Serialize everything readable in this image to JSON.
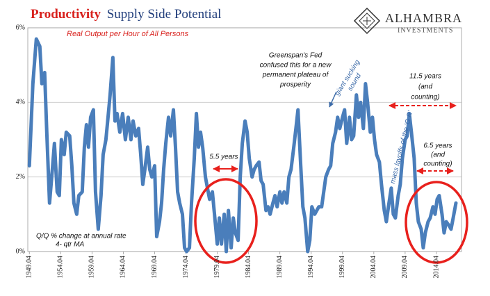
{
  "chart_data": {
    "type": "line",
    "title": [
      "Productivity",
      "Supply Side Potential"
    ],
    "subtitle": "Real Output per Hour of All Persons",
    "note": [
      "Q/Q % change at annual rate",
      "4- qtr MA"
    ],
    "logo": [
      "ALHAMBRA",
      "INVESTMENTS"
    ],
    "annotations": [
      [
        "Greenspan's Fed",
        "confused this for a new",
        "permanent plateau of",
        "prosperity"
      ],
      [
        "giant sucking",
        "sound"
      ],
      [
        "mass layoffs of the 'G R'"
      ],
      [
        "11.5 years",
        "(and",
        "counting)"
      ],
      [
        "5.5 years"
      ],
      [
        "6.5 years",
        "(and",
        "counting)"
      ]
    ],
    "color": "#4a7ebb",
    "grid": true,
    "xlim": [
      1949.5,
      2018.75
    ],
    "ylim": [
      0,
      6
    ],
    "xticks": [
      {
        "value": 1949.75,
        "label": "1949.04"
      },
      {
        "value": 1954.75,
        "label": "1954.04"
      },
      {
        "value": 1959.75,
        "label": "1959.04"
      },
      {
        "value": 1964.75,
        "label": "1964.04"
      },
      {
        "value": 1969.75,
        "label": "1969.04"
      },
      {
        "value": 1974.75,
        "label": "1974.04"
      },
      {
        "value": 1979.75,
        "label": "1979.04"
      },
      {
        "value": 1984.75,
        "label": "1984.04"
      },
      {
        "value": 1989.75,
        "label": "1989.04"
      },
      {
        "value": 1994.75,
        "label": "1994.04"
      },
      {
        "value": 1999.75,
        "label": "1999.04"
      },
      {
        "value": 2004.75,
        "label": "2004.04"
      },
      {
        "value": 2009.75,
        "label": "2009.04"
      },
      {
        "value": 2014.75,
        "label": "2014.04"
      }
    ],
    "yticks": [
      {
        "value": 0,
        "label": "0%"
      },
      {
        "value": 2,
        "label": "2%"
      },
      {
        "value": 4,
        "label": "4%"
      },
      {
        "value": 6,
        "label": "6%"
      }
    ],
    "x": [
      1949.75,
      1950.31,
      1950.86,
      1951.42,
      1951.75,
      1952.19,
      1952.53,
      1952.97,
      1953.42,
      1953.75,
      1954.19,
      1954.53,
      1954.86,
      1955.31,
      1955.64,
      1956.19,
      1956.53,
      1956.86,
      1957.31,
      1957.64,
      1958.19,
      1958.53,
      1958.86,
      1959.19,
      1959.53,
      1959.97,
      1960.31,
      1960.75,
      1961.19,
      1961.53,
      1961.97,
      1962.31,
      1962.64,
      1963.08,
      1963.42,
      1963.75,
      1964.19,
      1964.64,
      1965.08,
      1965.53,
      1965.97,
      1966.31,
      1966.75,
      1967.19,
      1967.53,
      1967.86,
      1968.19,
      1968.64,
      1968.97,
      1969.31,
      1969.75,
      1970.08,
      1970.53,
      1970.86,
      1971.19,
      1971.53,
      1971.97,
      1972.31,
      1972.75,
      1973.08,
      1973.42,
      1973.75,
      1974.19,
      1974.53,
      1974.86,
      1975.31,
      1975.64,
      1976.08,
      1976.42,
      1976.75,
      1977.08,
      1977.42,
      1977.86,
      1978.19,
      1978.53,
      1978.97,
      1979.31,
      1979.75,
      1980.08,
      1980.42,
      1980.86,
      1981.19,
      1981.53,
      1981.97,
      1982.31,
      1982.64,
      1983.08,
      1983.42,
      1983.75,
      1984.19,
      1984.53,
      1984.86,
      1985.31,
      1985.64,
      1985.97,
      1986.42,
      1986.75,
      1987.08,
      1987.53,
      1987.86,
      1988.19,
      1988.64,
      1988.97,
      1989.31,
      1989.75,
      1990.08,
      1990.42,
      1990.86,
      1991.19,
      1991.53,
      1991.97,
      1992.31,
      1992.64,
      1993.08,
      1993.42,
      1993.75,
      1994.19,
      1994.53,
      1994.86,
      1995.31,
      1995.64,
      1995.97,
      1996.42,
      1996.75,
      1997.08,
      1997.53,
      1997.86,
      1998.19,
      1998.64,
      1998.97,
      1999.31,
      1999.75,
      2000.08,
      2000.42,
      2000.86,
      2001.19,
      2001.53,
      2001.97,
      2002.31,
      2002.64,
      2003.08,
      2003.42,
      2003.75,
      2004.19,
      2004.53,
      2004.86,
      2005.19,
      2005.64,
      2005.97,
      2006.42,
      2006.75,
      2007.08,
      2007.53,
      2007.86,
      2008.19,
      2008.64,
      2008.97,
      2009.31,
      2009.75,
      2010.08,
      2010.42,
      2010.75,
      2011.19,
      2011.53,
      2011.86,
      2012.31,
      2012.64,
      2012.97,
      2013.42,
      2013.75,
      2014.19,
      2014.53,
      2014.86,
      2015.19,
      2015.64,
      2015.97,
      2016.31,
      2016.75,
      2017.08,
      2017.42,
      2017.86
    ],
    "values": [
      2.3,
      4.5,
      5.7,
      5.5,
      4.5,
      4.8,
      3.2,
      1.3,
      2.2,
      2.9,
      1.6,
      1.5,
      3.0,
      2.6,
      3.2,
      3.1,
      2.3,
      1.3,
      1.0,
      1.5,
      1.6,
      2.8,
      3.4,
      2.8,
      3.6,
      3.8,
      1.6,
      0.6,
      1.5,
      2.6,
      3.0,
      3.6,
      4.2,
      5.2,
      3.5,
      3.7,
      3.2,
      3.7,
      3.0,
      3.6,
      3.0,
      3.5,
      3.1,
      3.3,
      2.6,
      1.8,
      2.2,
      2.8,
      2.2,
      2.0,
      2.3,
      0.4,
      0.8,
      1.3,
      2.2,
      2.9,
      3.6,
      3.1,
      3.8,
      2.8,
      1.6,
      1.3,
      1.0,
      0.1,
      0.0,
      0.1,
      1.3,
      2.5,
      3.7,
      2.8,
      3.2,
      2.8,
      2.0,
      1.7,
      1.4,
      1.6,
      1.0,
      0.2,
      0.9,
      0.2,
      1.0,
      0.0,
      1.1,
      0.1,
      0.9,
      0.5,
      0.3,
      2.0,
      2.9,
      3.5,
      3.2,
      2.5,
      2.0,
      2.2,
      2.3,
      2.4,
      1.9,
      1.8,
      1.1,
      1.2,
      1.0,
      1.3,
      1.5,
      1.2,
      1.6,
      1.3,
      1.6,
      1.3,
      2.0,
      2.2,
      2.8,
      3.3,
      3.8,
      2.3,
      1.2,
      0.9,
      0.0,
      0.3,
      1.2,
      1.0,
      1.1,
      1.2,
      1.2,
      1.6,
      2.0,
      2.2,
      2.3,
      2.9,
      3.2,
      3.6,
      3.3,
      3.6,
      3.8,
      2.9,
      3.6,
      3.0,
      3.1,
      4.2,
      3.6,
      4.0,
      3.3,
      4.5,
      4.0,
      3.2,
      3.6,
      3.0,
      2.6,
      2.4,
      1.8,
      1.1,
      0.8,
      1.2,
      1.7,
      1.0,
      0.9,
      1.5,
      1.8,
      2.5,
      3.0,
      3.1,
      3.7,
      3.2,
      2.5,
      1.3,
      0.8,
      0.6,
      0.1,
      0.5,
      0.8,
      0.9,
      1.2,
      1.0,
      1.4,
      1.5,
      1.0,
      0.5,
      0.8,
      0.7,
      0.6,
      0.9,
      1.3
    ]
  }
}
